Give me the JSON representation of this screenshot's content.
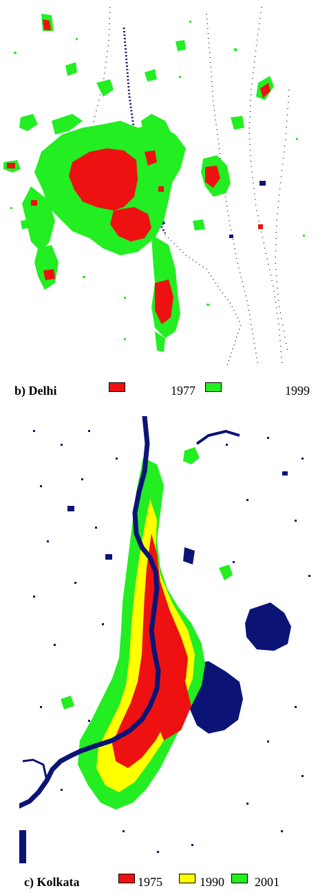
{
  "colors": {
    "red": "#ee1111",
    "yellow": "#ffff00",
    "green": "#22ee22",
    "water": "#0b1475",
    "background": "#ffffff"
  },
  "delhi": {
    "label": "b) Delhi",
    "legend": [
      {
        "year": "1977",
        "color": "#ee1111"
      },
      {
        "year": "1999",
        "color": "#22ee22"
      }
    ]
  },
  "kolkata": {
    "label": "c) Kolkata",
    "legend": [
      {
        "year": "1975",
        "color": "#ee1111"
      },
      {
        "year": "1990",
        "color": "#ffff00"
      },
      {
        "year": "2001",
        "color": "#22ee22"
      }
    ]
  }
}
